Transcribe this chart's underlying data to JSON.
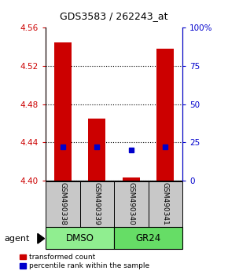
{
  "title": "GDS3583 / 262243_at",
  "samples": [
    "GSM490338",
    "GSM490339",
    "GSM490340",
    "GSM490341"
  ],
  "red_tops": [
    4.545,
    4.465,
    4.403,
    4.538
  ],
  "blue_values_pct": [
    22,
    22,
    20,
    22
  ],
  "ylim_left": [
    4.4,
    4.56
  ],
  "ylim_right": [
    0,
    100
  ],
  "yticks_left": [
    4.4,
    4.44,
    4.48,
    4.52,
    4.56
  ],
  "yticks_right": [
    0,
    25,
    50,
    75,
    100
  ],
  "ytick_labels_right": [
    "0",
    "25",
    "50",
    "75",
    "100%"
  ],
  "bar_bottom": 4.4,
  "bar_width": 0.5,
  "red_color": "#CC0000",
  "blue_color": "#0000CC",
  "sample_box_color": "#C8C8C8",
  "dmso_color": "#90EE90",
  "gr24_color": "#66DD66",
  "agent_label": "agent",
  "legend_red": "transformed count",
  "legend_blue": "percentile rank within the sample",
  "background_color": "#FFFFFF",
  "group_spans": [
    [
      1,
      2,
      "DMSO"
    ],
    [
      3,
      4,
      "GR24"
    ]
  ]
}
